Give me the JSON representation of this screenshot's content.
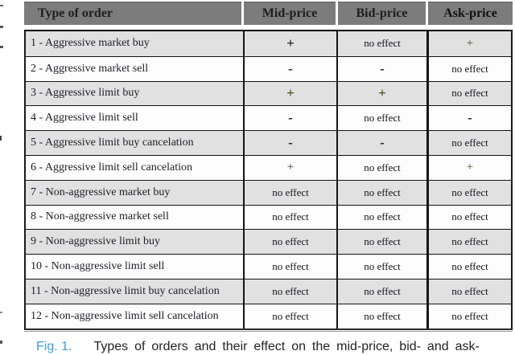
{
  "table": {
    "headers": [
      "Type of order",
      "Mid-price",
      "Bid-price",
      "Ask-price"
    ],
    "rows": [
      {
        "label": "1 - Aggressive market buy",
        "cells": [
          {
            "text": "+",
            "variant": "bold"
          },
          {
            "text": "no effect",
            "variant": "noeffect"
          },
          {
            "text": "+",
            "variant": "green"
          }
        ]
      },
      {
        "label": "2 - Aggressive market sell",
        "cells": [
          {
            "text": "-",
            "variant": "bold"
          },
          {
            "text": "-",
            "variant": "bold"
          },
          {
            "text": "no effect",
            "variant": "noeffect"
          }
        ]
      },
      {
        "label": "3 - Aggressive limit buy",
        "cells": [
          {
            "text": "+",
            "variant": "green-bold"
          },
          {
            "text": "+",
            "variant": "green-bold"
          },
          {
            "text": "no effect",
            "variant": "noeffect"
          }
        ]
      },
      {
        "label": "4 - Aggressive limit sell",
        "cells": [
          {
            "text": "-",
            "variant": "bold"
          },
          {
            "text": "no effect",
            "variant": "noeffect"
          },
          {
            "text": "-",
            "variant": "bold"
          }
        ]
      },
      {
        "label": "5 - Aggressive limit buy cancelation",
        "cells": [
          {
            "text": "-",
            "variant": "bold"
          },
          {
            "text": "-",
            "variant": "bold"
          },
          {
            "text": "no effect",
            "variant": "noeffect"
          }
        ]
      },
      {
        "label": "6 - Aggressive limit sell cancelation",
        "cells": [
          {
            "text": "+",
            "variant": "plain"
          },
          {
            "text": "no effect",
            "variant": "noeffect"
          },
          {
            "text": "+",
            "variant": "green"
          }
        ]
      },
      {
        "label": "7 - Non-aggressive market buy",
        "cells": [
          {
            "text": "no effect",
            "variant": "noeffect"
          },
          {
            "text": "no effect",
            "variant": "noeffect"
          },
          {
            "text": "no effect",
            "variant": "noeffect"
          }
        ]
      },
      {
        "label": "8 - Non-aggressive market sell",
        "cells": [
          {
            "text": "no effect",
            "variant": "noeffect"
          },
          {
            "text": "no effect",
            "variant": "noeffect"
          },
          {
            "text": "no effect",
            "variant": "noeffect"
          }
        ]
      },
      {
        "label": "9 - Non-aggressive limit buy",
        "cells": [
          {
            "text": "no effect",
            "variant": "noeffect"
          },
          {
            "text": "no effect",
            "variant": "noeffect"
          },
          {
            "text": "no effect",
            "variant": "noeffect"
          }
        ]
      },
      {
        "label": "10 - Non-aggressive limit sell",
        "cells": [
          {
            "text": "no effect",
            "variant": "noeffect"
          },
          {
            "text": "no effect",
            "variant": "noeffect"
          },
          {
            "text": "no effect",
            "variant": "noeffect"
          }
        ]
      },
      {
        "label": "11 - Non-aggressive limit buy cancelation",
        "cells": [
          {
            "text": "no effect",
            "variant": "noeffect"
          },
          {
            "text": "no effect",
            "variant": "noeffect"
          },
          {
            "text": "no effect",
            "variant": "noeffect"
          }
        ]
      },
      {
        "label": "12 - Non-aggressive limit sell cancelation",
        "cells": [
          {
            "text": "no effect",
            "variant": "noeffect"
          },
          {
            "text": "no effect",
            "variant": "noeffect"
          },
          {
            "text": "no effect",
            "variant": "noeffect"
          }
        ]
      }
    ]
  },
  "caption": {
    "fig_label": "Fig. 1.",
    "text": "Types of orders and their effect on the mid-price, bid- and ask-"
  },
  "colors": {
    "header_bg": "#7c7c7c",
    "row_alt_bg": "#e1e1e1",
    "row_bg": "#fdfdfd",
    "border": "#151515",
    "sign_green": "#4d521f",
    "sign_dark": "#22221b",
    "caption_blue": "#3d9be0"
  }
}
